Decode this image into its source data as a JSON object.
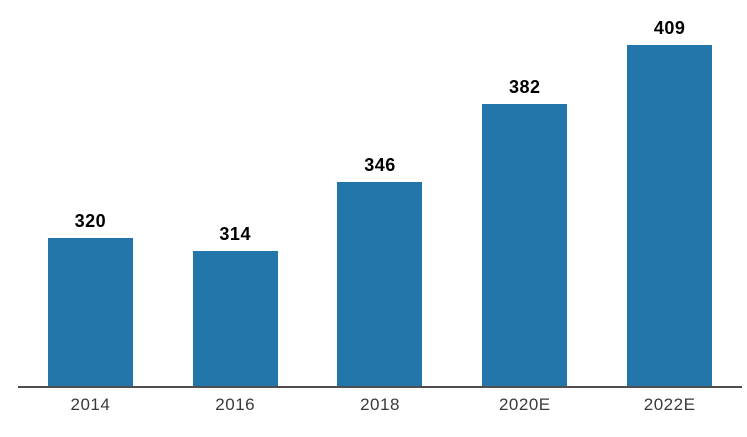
{
  "chart_data": {
    "type": "bar",
    "categories": [
      "2014",
      "2016",
      "2018",
      "2020E",
      "2022E"
    ],
    "values": [
      320,
      314,
      346,
      382,
      409
    ],
    "title": "",
    "xlabel": "",
    "ylabel": "",
    "ylim": [
      252,
      425
    ],
    "grid": false,
    "legend": false,
    "data_labels_shown": true,
    "bar_color": "#2376a9",
    "axis_line_color": "#4f4f4f",
    "data_label_color": "#000000",
    "tick_label_color": "#3a3a3a",
    "background_color": "#ffffff"
  }
}
